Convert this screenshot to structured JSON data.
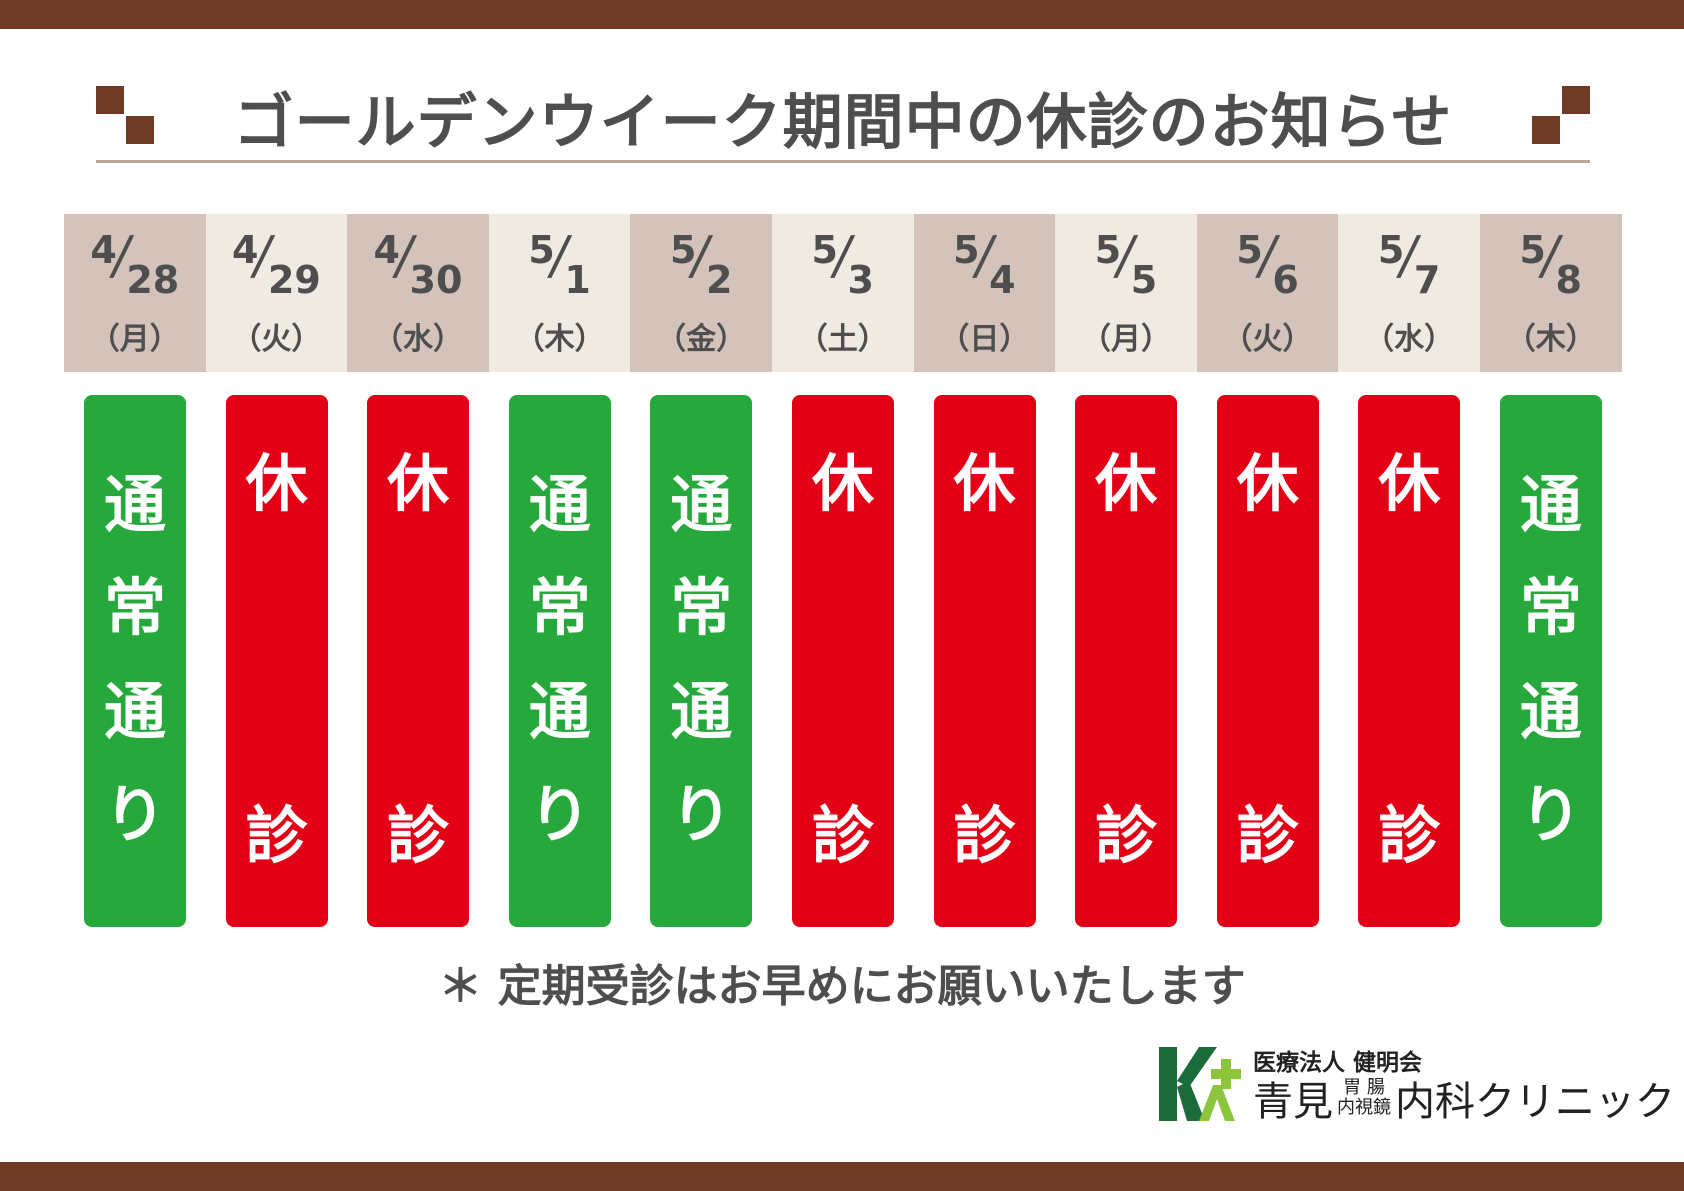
{
  "title": "ゴールデンウイーク期間中の休診のお知らせ",
  "days": [
    {
      "month": "4",
      "day": "28",
      "weekday": "（月）",
      "status": "normal"
    },
    {
      "month": "4",
      "day": "29",
      "weekday": "（火）",
      "status": "closed"
    },
    {
      "month": "4",
      "day": "30",
      "weekday": "（水）",
      "status": "closed"
    },
    {
      "month": "5",
      "day": "1",
      "weekday": "（木）",
      "status": "normal"
    },
    {
      "month": "5",
      "day": "2",
      "weekday": "（金）",
      "status": "normal"
    },
    {
      "month": "5",
      "day": "3",
      "weekday": "（土）",
      "status": "closed"
    },
    {
      "month": "5",
      "day": "4",
      "weekday": "（日）",
      "status": "closed"
    },
    {
      "month": "5",
      "day": "5",
      "weekday": "（月）",
      "status": "closed"
    },
    {
      "month": "5",
      "day": "6",
      "weekday": "（火）",
      "status": "closed"
    },
    {
      "month": "5",
      "day": "7",
      "weekday": "（水）",
      "status": "closed"
    },
    {
      "month": "5",
      "day": "8",
      "weekday": "（木）",
      "status": "normal"
    }
  ],
  "labels": {
    "normal": "通常通り",
    "closed": "休診"
  },
  "note": "＊ 定期受診はお早めにお願いいたします",
  "clinic": {
    "corporation": "医療法人 健明会",
    "name_left": "青見",
    "specialty_top": "胃 腸",
    "specialty_bottom": "内視鏡",
    "name_right": "内科クリニック"
  },
  "colors": {
    "band": "#6f3a26",
    "normal": "#27a83c",
    "closed": "#e30016",
    "cell_dark": "#d4c3bb",
    "cell_light": "#f0ebe2",
    "logo_dark": "#1c6b3a",
    "logo_light": "#8cc63f"
  }
}
